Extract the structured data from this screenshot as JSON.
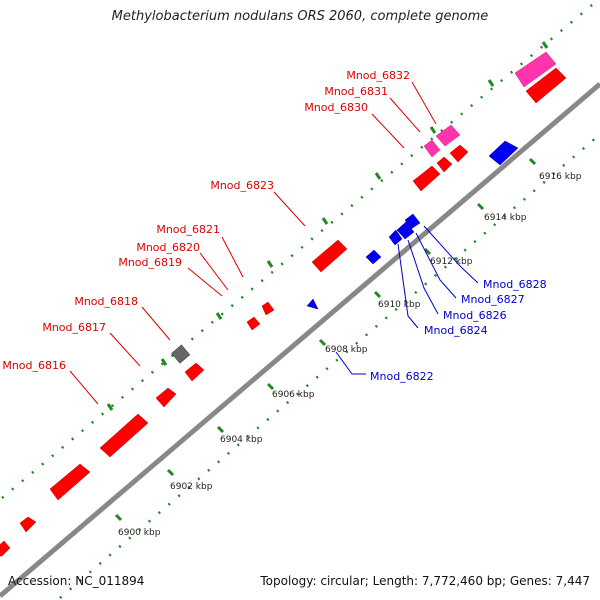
{
  "title": "Methylobacterium nodulans ORS 2060, complete genome",
  "footer": {
    "accession": "Accession: NC_011894",
    "summary": "Topology: circular; Length: 7,772,460 bp; Genes: 7,447"
  },
  "colors": {
    "forward_gene": "#ff0000",
    "forward_label": "#e00000",
    "reverse_gene": "#0000ee",
    "reverse_label": "#0000cc",
    "highlight_gene": "#ff33aa",
    "other_gene": "#666666",
    "backbone": "#888888",
    "dots": "#228822"
  },
  "scale_labels": [
    "6900 kbp",
    "6902 kbp",
    "6904 kbp",
    "6906 kbp",
    "6908 kbp",
    "6910 kbp",
    "6912 kbp",
    "6914 kbp",
    "6916 kbp"
  ],
  "forward_labels": [
    "Mnod_6816",
    "Mnod_6817",
    "Mnod_6818",
    "Mnod_6819",
    "Mnod_6820",
    "Mnod_6821",
    "Mnod_6823",
    "Mnod_6830",
    "Mnod_6831",
    "Mnod_6832"
  ],
  "reverse_labels": [
    "Mnod_6822",
    "Mnod_6824",
    "Mnod_6826",
    "Mnod_6827",
    "Mnod_6828"
  ]
}
